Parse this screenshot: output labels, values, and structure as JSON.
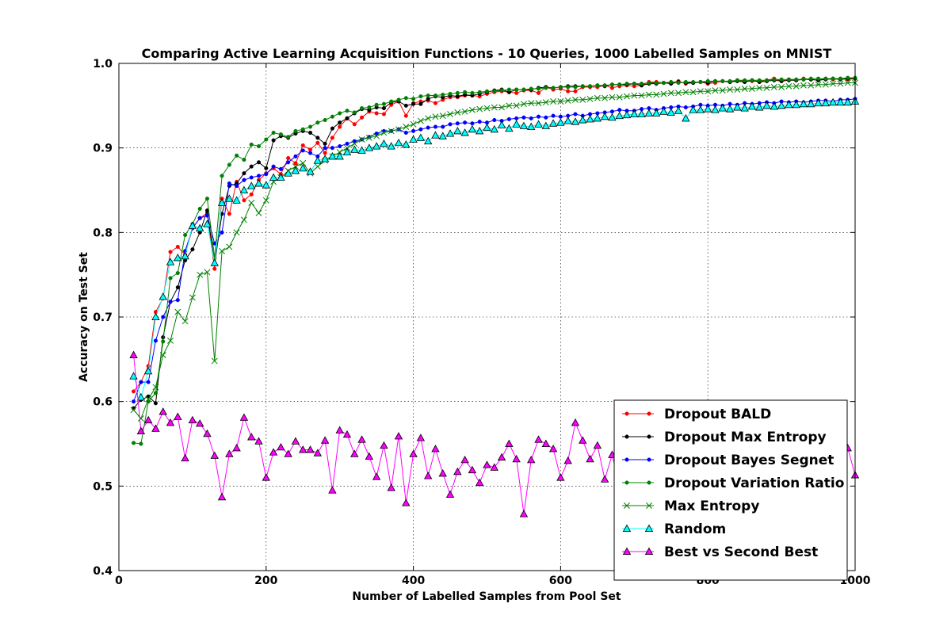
{
  "chart_data": {
    "type": "line",
    "title": "Comparing Active Learning Acquisition Functions - 10 Queries, 1000 Labelled Samples on MNIST",
    "xlabel": "Number of Labelled Samples from Pool Set",
    "ylabel": "Accuracy on Test Set",
    "xlim": [
      0,
      1000
    ],
    "ylim": [
      0.4,
      1.0
    ],
    "xticks": [
      "0",
      "200",
      "400",
      "600",
      "800",
      "1000"
    ],
    "yticks": [
      "0.4",
      "0.5",
      "0.6",
      "0.7",
      "0.8",
      "0.9",
      "1.0"
    ],
    "grid": true,
    "legend_position": "lower-right",
    "x": [
      20,
      30,
      40,
      50,
      60,
      70,
      80,
      90,
      100,
      110,
      120,
      130,
      140,
      150,
      160,
      170,
      180,
      190,
      200,
      210,
      220,
      230,
      240,
      250,
      260,
      270,
      280,
      290,
      300,
      310,
      320,
      330,
      340,
      350,
      360,
      370,
      380,
      390,
      400,
      410,
      420,
      430,
      440,
      450,
      460,
      470,
      480,
      490,
      500,
      510,
      520,
      530,
      540,
      550,
      560,
      570,
      580,
      590,
      600,
      610,
      620,
      630,
      640,
      650,
      660,
      670,
      680,
      690,
      700,
      710,
      720,
      730,
      740,
      750,
      760,
      770,
      780,
      790,
      800,
      810,
      820,
      830,
      840,
      850,
      860,
      870,
      880,
      890,
      900,
      910,
      920,
      930,
      940,
      950,
      960,
      970,
      980,
      990,
      1000
    ],
    "series": [
      {
        "name": "Dropout BALD",
        "color": "#ff0000",
        "marker": "dot",
        "values": [
          0.612,
          0.623,
          0.642,
          0.706,
          0.722,
          0.777,
          0.783,
          0.774,
          0.805,
          0.817,
          0.823,
          0.757,
          0.84,
          0.822,
          0.86,
          0.838,
          0.845,
          0.862,
          0.87,
          0.876,
          0.869,
          0.888,
          0.882,
          0.903,
          0.898,
          0.906,
          0.894,
          0.912,
          0.925,
          0.935,
          0.928,
          0.936,
          0.943,
          0.941,
          0.94,
          0.951,
          0.955,
          0.938,
          0.953,
          0.955,
          0.956,
          0.953,
          0.957,
          0.96,
          0.96,
          0.962,
          0.962,
          0.961,
          0.964,
          0.966,
          0.967,
          0.966,
          0.965,
          0.968,
          0.968,
          0.965,
          0.972,
          0.969,
          0.97,
          0.967,
          0.967,
          0.972,
          0.972,
          0.972,
          0.974,
          0.971,
          0.973,
          0.974,
          0.973,
          0.974,
          0.978,
          0.978,
          0.977,
          0.977,
          0.979,
          0.976,
          0.977,
          0.978,
          0.976,
          0.977,
          0.979,
          0.978,
          0.98,
          0.979,
          0.979,
          0.979,
          0.98,
          0.982,
          0.979,
          0.981,
          0.98,
          0.982,
          0.981,
          0.98,
          0.982,
          0.981,
          0.982,
          0.981,
          0.982
        ]
      },
      {
        "name": "Dropout Max Entropy",
        "color": "#000000",
        "marker": "dot",
        "values": [
          0.592,
          0.602,
          0.606,
          0.598,
          0.676,
          0.718,
          0.735,
          0.767,
          0.78,
          0.8,
          0.826,
          0.763,
          0.822,
          0.855,
          0.858,
          0.87,
          0.878,
          0.883,
          0.876,
          0.909,
          0.914,
          0.912,
          0.917,
          0.92,
          0.918,
          0.912,
          0.905,
          0.923,
          0.93,
          0.935,
          0.941,
          0.946,
          0.945,
          0.948,
          0.947,
          0.954,
          0.955,
          0.95,
          0.952,
          0.952,
          0.958,
          0.961,
          0.96,
          0.962,
          0.961,
          0.963,
          0.962,
          0.964,
          0.966,
          0.968,
          0.969,
          0.966,
          0.969,
          0.969,
          0.969,
          0.971,
          0.972,
          0.971,
          0.972,
          0.973,
          0.973,
          0.973,
          0.973,
          0.974,
          0.973,
          0.975,
          0.975,
          0.975,
          0.976,
          0.974,
          0.976,
          0.976,
          0.977,
          0.976,
          0.978,
          0.977,
          0.977,
          0.978,
          0.977,
          0.979,
          0.979,
          0.978,
          0.979,
          0.978,
          0.98,
          0.978,
          0.979,
          0.98,
          0.979,
          0.98,
          0.98,
          0.981,
          0.981,
          0.98,
          0.981,
          0.982,
          0.981,
          0.982,
          0.982
        ]
      },
      {
        "name": "Dropout Bayes Segnet",
        "color": "#0000ff",
        "marker": "dot",
        "values": [
          0.6,
          0.623,
          0.623,
          0.672,
          0.7,
          0.718,
          0.72,
          0.778,
          0.805,
          0.817,
          0.82,
          0.787,
          0.8,
          0.858,
          0.855,
          0.862,
          0.865,
          0.867,
          0.869,
          0.878,
          0.875,
          0.883,
          0.89,
          0.897,
          0.894,
          0.89,
          0.9,
          0.9,
          0.902,
          0.905,
          0.908,
          0.91,
          0.913,
          0.917,
          0.92,
          0.92,
          0.922,
          0.918,
          0.92,
          0.922,
          0.924,
          0.925,
          0.925,
          0.928,
          0.929,
          0.93,
          0.929,
          0.931,
          0.93,
          0.933,
          0.932,
          0.934,
          0.935,
          0.936,
          0.935,
          0.937,
          0.936,
          0.938,
          0.937,
          0.938,
          0.94,
          0.938,
          0.94,
          0.941,
          0.942,
          0.943,
          0.945,
          0.944,
          0.944,
          0.946,
          0.947,
          0.945,
          0.947,
          0.948,
          0.949,
          0.948,
          0.949,
          0.951,
          0.95,
          0.951,
          0.95,
          0.952,
          0.951,
          0.953,
          0.952,
          0.953,
          0.954,
          0.953,
          0.955,
          0.954,
          0.955,
          0.954,
          0.955,
          0.956,
          0.956,
          0.955,
          0.957,
          0.957,
          0.958
        ]
      },
      {
        "name": "Dropout Variation Ratio",
        "color": "#008000",
        "marker": "dot",
        "values": [
          0.551,
          0.55,
          0.6,
          0.61,
          0.671,
          0.746,
          0.752,
          0.797,
          0.81,
          0.828,
          0.84,
          0.77,
          0.867,
          0.88,
          0.891,
          0.886,
          0.904,
          0.902,
          0.91,
          0.918,
          0.916,
          0.913,
          0.92,
          0.922,
          0.925,
          0.93,
          0.933,
          0.937,
          0.941,
          0.944,
          0.942,
          0.947,
          0.948,
          0.951,
          0.952,
          0.955,
          0.957,
          0.959,
          0.958,
          0.961,
          0.962,
          0.962,
          0.963,
          0.964,
          0.965,
          0.966,
          0.965,
          0.966,
          0.967,
          0.967,
          0.968,
          0.969,
          0.969,
          0.969,
          0.97,
          0.97,
          0.971,
          0.971,
          0.972,
          0.972,
          0.972,
          0.973,
          0.973,
          0.974,
          0.974,
          0.975,
          0.975,
          0.976,
          0.976,
          0.976,
          0.977,
          0.977,
          0.977,
          0.978,
          0.977,
          0.978,
          0.978,
          0.978,
          0.979,
          0.979,
          0.979,
          0.979,
          0.98,
          0.98,
          0.98,
          0.98,
          0.98,
          0.981,
          0.981,
          0.981,
          0.981,
          0.981,
          0.982,
          0.982,
          0.982,
          0.982,
          0.982,
          0.983,
          0.983
        ]
      },
      {
        "name": "Max Entropy",
        "color": "#008000",
        "marker": "x",
        "values": [
          0.59,
          0.58,
          0.603,
          0.617,
          0.655,
          0.672,
          0.706,
          0.695,
          0.723,
          0.75,
          0.753,
          0.648,
          0.778,
          0.783,
          0.8,
          0.815,
          0.835,
          0.823,
          0.838,
          0.86,
          0.865,
          0.873,
          0.878,
          0.882,
          0.87,
          0.878,
          0.885,
          0.89,
          0.895,
          0.9,
          0.905,
          0.91,
          0.912,
          0.914,
          0.918,
          0.92,
          0.922,
          0.925,
          0.928,
          0.932,
          0.935,
          0.937,
          0.938,
          0.94,
          0.942,
          0.943,
          0.945,
          0.946,
          0.947,
          0.948,
          0.948,
          0.95,
          0.95,
          0.952,
          0.953,
          0.953,
          0.954,
          0.955,
          0.955,
          0.956,
          0.957,
          0.957,
          0.958,
          0.959,
          0.959,
          0.96,
          0.96,
          0.961,
          0.962,
          0.962,
          0.963,
          0.963,
          0.964,
          0.965,
          0.965,
          0.966,
          0.966,
          0.967,
          0.967,
          0.968,
          0.968,
          0.969,
          0.969,
          0.97,
          0.97,
          0.971,
          0.971,
          0.972,
          0.972,
          0.973,
          0.973,
          0.974,
          0.974,
          0.975,
          0.975,
          0.976,
          0.976,
          0.977,
          0.977
        ]
      },
      {
        "name": "Random",
        "color": "#00ffff",
        "marker": "triangle",
        "values": [
          0.63,
          0.605,
          0.636,
          0.7,
          0.724,
          0.765,
          0.77,
          0.772,
          0.808,
          0.805,
          0.81,
          0.764,
          0.835,
          0.84,
          0.838,
          0.85,
          0.855,
          0.858,
          0.856,
          0.865,
          0.865,
          0.87,
          0.873,
          0.876,
          0.872,
          0.885,
          0.887,
          0.89,
          0.89,
          0.895,
          0.898,
          0.897,
          0.9,
          0.902,
          0.905,
          0.902,
          0.906,
          0.904,
          0.91,
          0.912,
          0.908,
          0.915,
          0.914,
          0.917,
          0.92,
          0.918,
          0.922,
          0.92,
          0.924,
          0.922,
          0.927,
          0.923,
          0.928,
          0.926,
          0.925,
          0.928,
          0.926,
          0.929,
          0.93,
          0.932,
          0.931,
          0.933,
          0.934,
          0.935,
          0.937,
          0.936,
          0.938,
          0.939,
          0.94,
          0.94,
          0.941,
          0.941,
          0.943,
          0.942,
          0.944,
          0.935,
          0.945,
          0.945,
          0.946,
          0.945,
          0.947,
          0.946,
          0.948,
          0.947,
          0.949,
          0.948,
          0.95,
          0.949,
          0.95,
          0.951,
          0.951,
          0.952,
          0.952,
          0.953,
          0.953,
          0.954,
          0.954,
          0.954,
          0.955
        ]
      },
      {
        "name": "Best vs Second Best",
        "color": "#ff00ff",
        "marker": "triangle",
        "values": [
          0.655,
          0.565,
          0.578,
          0.568,
          0.588,
          0.575,
          0.582,
          0.533,
          0.578,
          0.574,
          0.562,
          0.536,
          0.487,
          0.538,
          0.545,
          0.581,
          0.558,
          0.553,
          0.51,
          0.54,
          0.546,
          0.538,
          0.553,
          0.543,
          0.543,
          0.539,
          0.554,
          0.495,
          0.566,
          0.561,
          0.538,
          0.555,
          0.535,
          0.511,
          0.548,
          0.498,
          0.559,
          0.48,
          0.538,
          0.557,
          0.512,
          0.544,
          0.515,
          0.49,
          0.517,
          0.531,
          0.519,
          0.504,
          0.525,
          0.522,
          0.534,
          0.55,
          0.532,
          0.467,
          0.531,
          0.555,
          0.55,
          0.544,
          0.51,
          0.53,
          0.575,
          0.554,
          0.532,
          0.548,
          0.508,
          0.537,
          0.5,
          0.53,
          0.543,
          0.52,
          0.53,
          0.54,
          0.55,
          0.521,
          0.534,
          0.548,
          0.51,
          0.53,
          0.535,
          0.52,
          0.545,
          0.536,
          0.512,
          0.54,
          0.527,
          0.533,
          0.522,
          0.547,
          0.53,
          0.52,
          0.538,
          0.553,
          0.53,
          0.54,
          0.535,
          0.528,
          0.542,
          0.545,
          0.513
        ]
      }
    ]
  }
}
